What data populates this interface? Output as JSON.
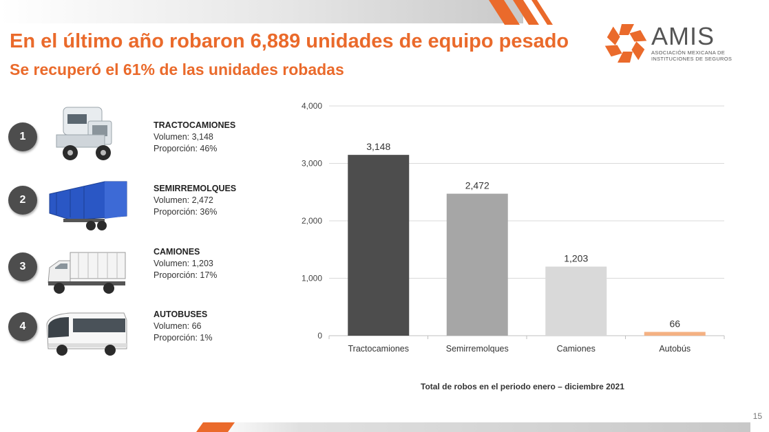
{
  "title": "En el último año robaron 6,889 unidades de equipo pesado",
  "subtitle": "Se recuperó el 61% de las unidades robadas",
  "logo": {
    "name": "AMIS",
    "line1": "ASOCIACIÓN MEXICANA DE",
    "line2": "INSTITUCIONES DE SEGUROS"
  },
  "colors": {
    "accent": "#ea6a2b",
    "bar1": "#4d4d4d",
    "bar2": "#a6a6a6",
    "bar3": "#d9d9d9",
    "bar4": "#f4b183"
  },
  "items": [
    {
      "number": "1",
      "name": "TRACTOCAMIONES",
      "volume": "Volumen: 3,148",
      "share": "Proporción: 46%",
      "icon": "tractor-truck-icon"
    },
    {
      "number": "2",
      "name": "SEMIRREMOLQUES",
      "volume": "Volumen: 2,472",
      "share": "Proporción: 36%",
      "icon": "semitrailer-icon"
    },
    {
      "number": "3",
      "name": "CAMIONES",
      "volume": "Volumen: 1,203",
      "share": "Proporción: 17%",
      "icon": "truck-icon"
    },
    {
      "number": "4",
      "name": "AUTOBUSES",
      "volume": "Volumen: 66",
      "share": "Proporción: 1%",
      "icon": "bus-icon"
    }
  ],
  "chart_data": {
    "type": "bar",
    "categories": [
      "Tractocamiones",
      "Semirremolques",
      "Camiones",
      "Autobús"
    ],
    "values": [
      3148,
      2472,
      1203,
      66
    ],
    "value_labels": [
      "3,148",
      "2,472",
      "1,203",
      "66"
    ],
    "ylim": [
      0,
      4000
    ],
    "yticks": [
      0,
      1000,
      2000,
      3000,
      4000
    ],
    "ytick_labels": [
      "0",
      "1,000",
      "2,000",
      "3,000",
      "4,000"
    ],
    "grid": true,
    "bar_colors": [
      "#4d4d4d",
      "#a6a6a6",
      "#d9d9d9",
      "#f4b183"
    ]
  },
  "caption": "Total de robos en el periodo enero – diciembre 2021",
  "page_number": "15"
}
